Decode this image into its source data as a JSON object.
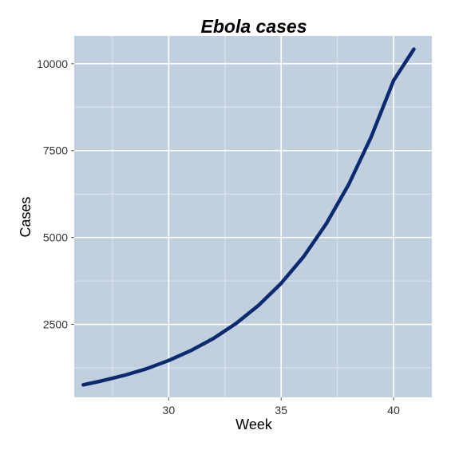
{
  "chart_data": {
    "type": "line",
    "title": "Ebola cases",
    "xlabel": "Week",
    "ylabel": "Cases",
    "xlim": [
      25.8,
      41.7
    ],
    "ylim": [
      400,
      10800
    ],
    "xticks": [
      30,
      35,
      40
    ],
    "xtick_labels": [
      "30",
      "35",
      "40"
    ],
    "yticks": [
      2500,
      5000,
      7500,
      10000
    ],
    "ytick_labels": [
      "2500",
      "5000",
      "7500",
      "10000"
    ],
    "grid": true,
    "legend": "none",
    "colors": {
      "panel_background": "#c1d0de",
      "grid_major": "#ffffff",
      "grid_minor": "#dce5ee",
      "line": "#0b2a70",
      "text": "#000000",
      "tick_text": "#333333"
    },
    "series": [
      {
        "x": [
          26.2,
          27,
          28,
          29,
          30,
          31,
          32,
          33,
          34,
          35,
          36,
          37,
          38,
          39,
          40,
          40.9
        ],
        "y": [
          760,
          870,
          1030,
          1220,
          1460,
          1750,
          2100,
          2530,
          3050,
          3680,
          4450,
          5390,
          6520,
          7890,
          9520,
          10420
        ]
      }
    ]
  }
}
